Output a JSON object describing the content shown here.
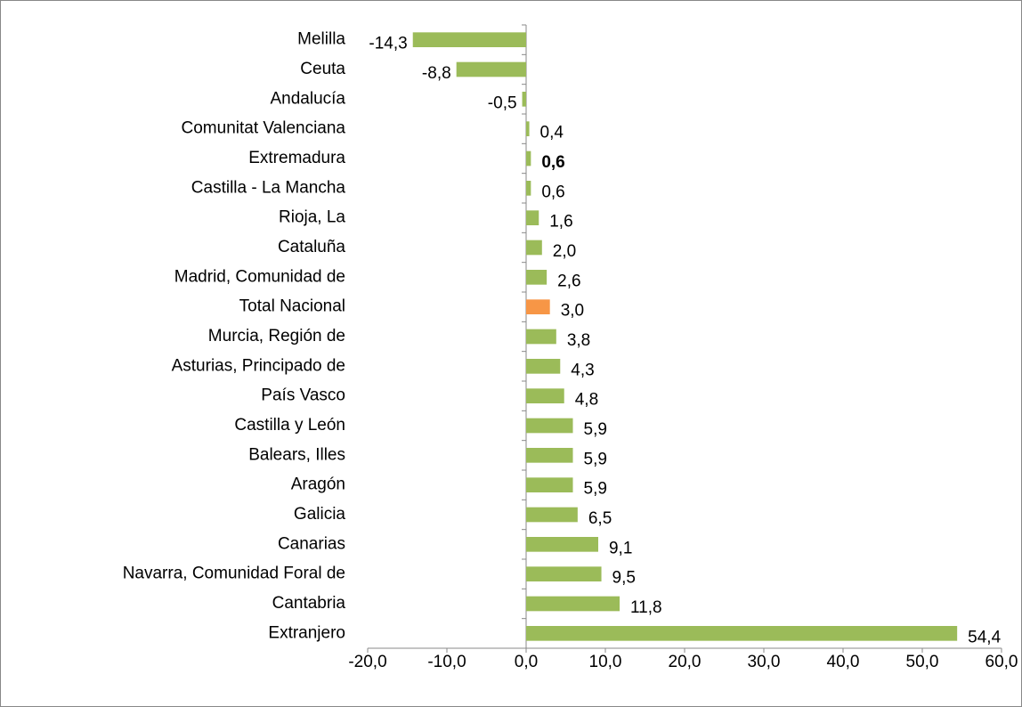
{
  "chart_data": {
    "type": "hbar",
    "categories": [
      "Melilla",
      "Ceuta",
      "Andalucía",
      "Comunitat Valenciana",
      "Extremadura",
      "Castilla - La Mancha",
      "Rioja, La",
      "Cataluña",
      "Madrid, Comunidad de",
      "Total Nacional",
      "Murcia, Región de",
      "Asturias, Principado de",
      "País Vasco",
      "Castilla y León",
      "Balears, Illes",
      "Aragón",
      "Galicia",
      "Canarias",
      "Navarra, Comunidad Foral de",
      "Cantabria",
      "Extranjero"
    ],
    "values": [
      -14.3,
      -8.8,
      -0.5,
      0.4,
      0.6,
      0.6,
      1.6,
      2.0,
      2.6,
      3.0,
      3.8,
      4.3,
      4.8,
      5.9,
      5.9,
      5.9,
      6.5,
      9.1,
      9.5,
      11.8,
      54.4
    ],
    "value_labels": [
      "-14,3",
      "-8,8",
      "-0,5",
      "0,4",
      "0,6",
      "0,6",
      "1,6",
      "2,0",
      "2,6",
      "3,0",
      "3,8",
      "4,3",
      "4,8",
      "5,9",
      "5,9",
      "5,9",
      "6,5",
      "9,1",
      "9,5",
      "11,8",
      "54,4"
    ],
    "color": "#9bbb59",
    "highlight": {
      "category": "Total Nacional",
      "color": "#f79646"
    },
    "bold_value_label_category": "Extremadura",
    "xlim": [
      -20,
      60
    ],
    "xticks": [
      {
        "value": -20,
        "label": "-20,0"
      },
      {
        "value": -10,
        "label": "-10,0"
      },
      {
        "value": 0,
        "label": "0,0"
      },
      {
        "value": 10,
        "label": "10,0"
      },
      {
        "value": 20,
        "label": "20,0"
      },
      {
        "value": 30,
        "label": "30,0"
      },
      {
        "value": 40,
        "label": "40,0"
      },
      {
        "value": 50,
        "label": "50,0"
      },
      {
        "value": 60,
        "label": "60,0"
      }
    ],
    "grid": false
  }
}
